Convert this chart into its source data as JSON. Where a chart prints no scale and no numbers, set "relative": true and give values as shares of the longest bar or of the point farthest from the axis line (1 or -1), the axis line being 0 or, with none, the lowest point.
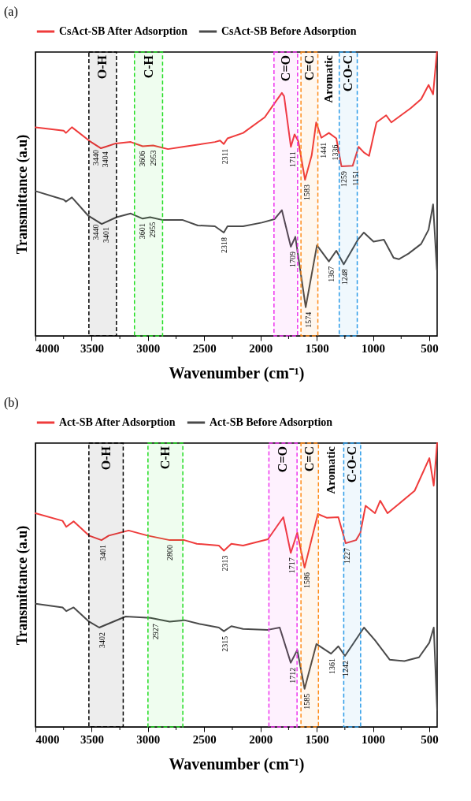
{
  "chart_data": [
    {
      "type": "line",
      "title": "(a)",
      "xlabel": "Wavenumber (cm⁻¹)",
      "ylabel": "Transmittance (a.u)",
      "relative": true,
      "legend": "top",
      "grid": false,
      "xlim": [
        4000,
        430
      ],
      "xticks": [
        4000,
        {
          "value": 3750,
          "label": null
        },
        3500,
        {
          "value": 3250,
          "label": null
        },
        3000,
        {
          "value": 2750,
          "label": null
        },
        2500,
        {
          "value": 2250,
          "label": null
        },
        2000,
        {
          "value": 1750,
          "label": null
        },
        1500,
        {
          "value": 1250,
          "label": null
        },
        1000,
        {
          "value": 750,
          "label": null
        },
        500
      ],
      "series": [
        {
          "name": "CsAct-SB After Adsorption",
          "color": "#ef3b3b",
          "x": [
            4000,
            3749,
            3729,
            3676,
            3517,
            3418,
            3378,
            3285,
            3153,
            3047,
            2954,
            2822,
            2690,
            2405,
            2359,
            2326,
            2293,
            2154,
            1962,
            1876,
            1810,
            1790,
            1730,
            1697,
            1664,
            1604,
            1545,
            1505,
            1459,
            1392,
            1326,
            1280,
            1181,
            1128,
            1081,
            1035,
            969,
            883,
            837,
            751,
            665,
            572,
            506,
            466,
            432
          ],
          "values": [
            0.735,
            0.723,
            0.715,
            0.735,
            0.686,
            0.661,
            0.666,
            0.678,
            0.683,
            0.668,
            0.671,
            0.658,
            0.666,
            0.683,
            0.688,
            0.676,
            0.696,
            0.715,
            0.77,
            0.819,
            0.856,
            0.844,
            0.666,
            0.71,
            0.686,
            0.55,
            0.636,
            0.752,
            0.698,
            0.715,
            0.696,
            0.597,
            0.599,
            0.666,
            0.646,
            0.634,
            0.752,
            0.777,
            0.752,
            0.777,
            0.802,
            0.834,
            0.884,
            0.851,
            1.0
          ]
        },
        {
          "name": "CsAct-SB Before Adsorption",
          "color": "#4a4a4a",
          "x": [
            4000,
            3749,
            3729,
            3676,
            3530,
            3411,
            3279,
            3153,
            3047,
            2981,
            2868,
            2690,
            2557,
            2405,
            2326,
            2293,
            2154,
            1988,
            1876,
            1810,
            1730,
            1690,
            1598,
            1498,
            1392,
            1326,
            1260,
            1134,
            1081,
            995,
            903,
            817,
            770,
            684,
            572,
            506,
            466,
            432
          ],
          "values": [
            0.51,
            0.48,
            0.473,
            0.488,
            0.423,
            0.394,
            0.418,
            0.431,
            0.413,
            0.418,
            0.408,
            0.408,
            0.389,
            0.386,
            0.364,
            0.386,
            0.386,
            0.399,
            0.411,
            0.443,
            0.314,
            0.349,
            0.101,
            0.319,
            0.262,
            0.3,
            0.252,
            0.339,
            0.364,
            0.332,
            0.339,
            0.275,
            0.27,
            0.29,
            0.324,
            0.374,
            0.463,
            0.233
          ]
        }
      ],
      "bands": [
        {
          "axis": "x",
          "from": 3525,
          "to": 3280,
          "label": "O-H",
          "color": "#000000"
        },
        {
          "axis": "x",
          "from": 3120,
          "to": 2870,
          "label": "C-H",
          "color": "#22dd22"
        },
        {
          "axis": "x",
          "from": 1880,
          "to": 1670,
          "label": "C=O",
          "color": "#ee33ee"
        },
        {
          "axis": "x",
          "from": 1640,
          "to": 1490,
          "label": "C=C",
          "color": "#ff8c1a"
        },
        {
          "axis": "x",
          "from": 1300,
          "to": 1140,
          "label": "C-O-C",
          "color": "#2b9be8"
        }
      ],
      "annotations": [
        "Aromatic",
        {
          "text": "3440",
          "x": 3460,
          "y": 0.672
        },
        {
          "text": "3404",
          "x": 3380,
          "y": 0.666
        },
        {
          "text": "3606",
          "x": 3050,
          "y": 0.668
        },
        {
          "text": "2953",
          "x": 2953,
          "y": 0.671
        },
        {
          "text": "2311",
          "x": 2311,
          "y": 0.676
        },
        {
          "text": "1711",
          "x": 1711,
          "y": 0.666
        },
        {
          "text": "1583",
          "x": 1583,
          "y": 0.55
        },
        {
          "text": "1441",
          "x": 1441,
          "y": 0.698
        },
        {
          "text": "1336",
          "x": 1336,
          "y": 0.69
        },
        {
          "text": "1259",
          "x": 1259,
          "y": 0.597
        },
        {
          "text": "1151",
          "x": 1151,
          "y": 0.6
        },
        {
          "text": "3440",
          "x": 3460,
          "y": 0.41
        },
        {
          "text": "3401",
          "x": 3370,
          "y": 0.4
        },
        {
          "text": "3601",
          "x": 3050,
          "y": 0.413
        },
        {
          "text": "2955",
          "x": 2955,
          "y": 0.418
        },
        {
          "text": "2318",
          "x": 2318,
          "y": 0.364
        },
        {
          "text": "1709",
          "x": 1709,
          "y": 0.314
        },
        {
          "text": "1574",
          "x": 1574,
          "y": 0.101
        },
        {
          "text": "1367",
          "x": 1367,
          "y": 0.262
        },
        {
          "text": "1248",
          "x": 1248,
          "y": 0.252
        }
      ]
    },
    {
      "type": "line",
      "title": "(b)",
      "xlabel": "Wavenumber (cm⁻¹)",
      "ylabel": "Transmittance (a.u)",
      "relative": true,
      "legend": "top",
      "grid": false,
      "xlim": [
        4000,
        430
      ],
      "xticks": [
        4000,
        {
          "value": 3750,
          "label": null
        },
        3500,
        {
          "value": 3250,
          "label": null
        },
        3000,
        {
          "value": 2750,
          "label": null
        },
        2500,
        {
          "value": 2250,
          "label": null
        },
        2000,
        {
          "value": 1750,
          "label": null
        },
        1500,
        {
          "value": 1250,
          "label": null
        },
        1000,
        {
          "value": 750,
          "label": null
        },
        500
      ],
      "series": [
        {
          "name": "Act-SB After Adsorption",
          "color": "#ef3b3b",
          "x": [
            4000,
            3759,
            3726,
            3661,
            3524,
            3413,
            3348,
            3172,
            3003,
            2807,
            2677,
            2566,
            2370,
            2325,
            2259,
            2155,
            1934,
            1797,
            1731,
            1673,
            1608,
            1490,
            1412,
            1308,
            1243,
            1151,
            1112,
            1066,
            982,
            936,
            871,
            760,
            630,
            499,
            460,
            430
          ],
          "values": [
            0.753,
            0.726,
            0.705,
            0.724,
            0.674,
            0.658,
            0.674,
            0.692,
            0.674,
            0.658,
            0.658,
            0.645,
            0.639,
            0.621,
            0.645,
            0.639,
            0.661,
            0.739,
            0.613,
            0.684,
            0.561,
            0.75,
            0.737,
            0.739,
            0.647,
            0.658,
            0.684,
            0.779,
            0.753,
            0.797,
            0.753,
            0.789,
            0.832,
            0.947,
            0.85,
            1.0
          ]
        },
        {
          "name": "Act-SB Before Adsorption",
          "color": "#4a4a4a",
          "x": [
            4000,
            3759,
            3726,
            3661,
            3524,
            3433,
            3198,
            2977,
            2807,
            2677,
            2546,
            2370,
            2325,
            2259,
            2155,
            1934,
            1829,
            1731,
            1673,
            1608,
            1503,
            1373,
            1308,
            1249,
            1080,
            982,
            852,
            721,
            591,
            499,
            460,
            430
          ],
          "values": [
            0.434,
            0.421,
            0.408,
            0.421,
            0.371,
            0.35,
            0.389,
            0.384,
            0.371,
            0.376,
            0.363,
            0.35,
            0.337,
            0.355,
            0.345,
            0.342,
            0.35,
            0.226,
            0.271,
            0.134,
            0.292,
            0.258,
            0.284,
            0.25,
            0.35,
            0.305,
            0.237,
            0.232,
            0.245,
            0.297,
            0.35,
            0.06
          ]
        }
      ],
      "bands": [
        {
          "axis": "x",
          "from": 3525,
          "to": 3220,
          "label": "O-H",
          "color": "#000000"
        },
        {
          "axis": "x",
          "from": 3000,
          "to": 2690,
          "label": "C-H",
          "color": "#22dd22"
        },
        {
          "axis": "x",
          "from": 1925,
          "to": 1675,
          "label": "C=O",
          "color": "#ee33ee"
        },
        {
          "axis": "x",
          "from": 1640,
          "to": 1485,
          "label": "C=C",
          "color": "#ff8c1a"
        },
        {
          "axis": "x",
          "from": 1260,
          "to": 1110,
          "label": "C-O-C",
          "color": "#2b9be8"
        }
      ],
      "annotations": [
        "Aromatic",
        {
          "text": "3401",
          "x": 3401,
          "y": 0.658
        },
        {
          "text": "2800",
          "x": 2800,
          "y": 0.658
        },
        {
          "text": "2313",
          "x": 2313,
          "y": 0.621
        },
        {
          "text": "1717",
          "x": 1717,
          "y": 0.613
        },
        {
          "text": "1586",
          "x": 1586,
          "y": 0.561
        },
        {
          "text": "1227",
          "x": 1227,
          "y": 0.647
        },
        {
          "text": "3402",
          "x": 3402,
          "y": 0.35
        },
        {
          "text": "2927",
          "x": 2927,
          "y": 0.38
        },
        {
          "text": "2315",
          "x": 2315,
          "y": 0.337
        },
        {
          "text": "1712",
          "x": 1712,
          "y": 0.226
        },
        {
          "text": "1585",
          "x": 1585,
          "y": 0.134
        },
        {
          "text": "1361",
          "x": 1361,
          "y": 0.258
        },
        {
          "text": "1242",
          "x": 1242,
          "y": 0.25
        }
      ]
    }
  ]
}
